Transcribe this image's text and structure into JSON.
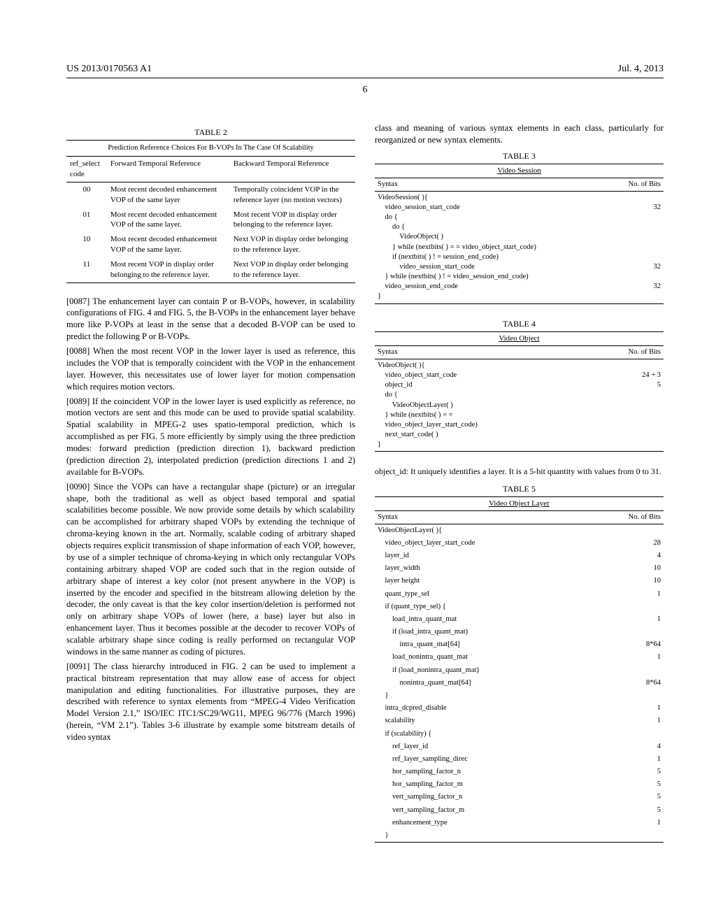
{
  "header": {
    "pub_number": "US 2013/0170563 A1",
    "pub_date": "Jul. 4, 2013",
    "page": "6"
  },
  "table2": {
    "label": "TABLE 2",
    "caption": "Prediction Reference Choices For B-VOPs In The Case Of Scalability",
    "head": [
      "ref_select code",
      "Forward Temporal Reference",
      "Backward Temporal Reference"
    ],
    "rows": [
      {
        "code": "00",
        "fwd": "Most recent decoded enhancement VOP of the same layer",
        "bwd": "Temporally coincident VOP in the reference layer (no motion vectors)"
      },
      {
        "code": "01",
        "fwd": "Most recent decoded enhancement VOP of the same layer.",
        "bwd": "Most recent VOP in display order belonging to the reference layer."
      },
      {
        "code": "10",
        "fwd": "Most recent decoded enhancement VOP of the same layer.",
        "bwd": "Next VOP in display order belonging to the reference layer."
      },
      {
        "code": "11",
        "fwd": "Most recent VOP in display order belonging to the reference layer.",
        "bwd": "Next VOP in display order belonging to the reference layer."
      }
    ]
  },
  "paras": {
    "p87_num": "[0087]",
    "p87": "    The enhancement layer can contain P or B-VOPs, however, in scalability configurations of FIG. 4 and FIG. 5, the B-VOPs in the enhancement layer behave more like P-VOPs at least in the sense that a decoded B-VOP can be used to predict the following P or B-VOPs.",
    "p88_num": "[0088]",
    "p88": "    When the most recent VOP in the lower layer is used as reference, this includes the VOP that is temporally coincident with the VOP in the enhancement layer. However, this necessitates use of lower layer for motion compensation which requires motion vectors.",
    "p89_num": "[0089]",
    "p89": "    If the coincident VOP in the lower layer is used explicitly as reference, no motion vectors are sent and this mode can be used to provide spatial scalability. Spatial scalability in MPEG-2 uses spatio-temporal prediction, which is accomplished as per FIG. 5 more efficiently by simply using the three prediction modes: forward prediction (prediction direction 1), backward prediction (prediction direction 2), interpolated prediction (prediction directions 1 and 2) available for B-VOPs.",
    "p90_num": "[0090]",
    "p90": "    Since the VOPs can have a rectangular shape (picture) or an irregular shape, both the traditional as well as object based temporal and spatial scalabilities become possible. We now provide some details by which scalability can be accomplished for arbitrary shaped VOPs by extending the technique of chroma-keying known in the art. Normally, scalable coding of arbitrary shaped objects requires explicit transmission of shape information of each VOP, however, by use of a simpler technique of chroma-keying in which only rectangular VOPs containing arbitrary shaped VOP are coded such that in the region outside of arbitrary shape of interest a key color (not present anywhere in the VOP) is inserted by the encoder and specified in the bitstream allowing deletion by the decoder, the only caveat is that the key color insertion/deletion is performed not only on arbitrary shape VOPs of lower (here, a base) layer but also in enhancement layer. Thus it becomes possible at the decoder to recover VOPs of scalable arbitrary shape since coding is really performed on rectangular VOP windows in the same manner as coding of pictures.",
    "p91_num": "[0091]",
    "p91": "    The class hierarchy introduced in FIG. 2 can be used to implement a practical bitstream representation that may allow ease of access for object manipulation and editing functionalities. For illustrative purposes, they are described with reference to syntax elements from “MPEG-4 Video Verification Model Version 2.1,” ISO/IEC ITC1/SC29/WG11, MPEG 96/776 (March 1996) (herein, “VM 2.1”). Tables 3-6 illustrate by example some bitstream details of video syntax"
  },
  "right_intro": "class and meaning of various syntax elements in each class, particularly for reorganized or new syntax elements.",
  "table3": {
    "label": "TABLE 3",
    "caption": "Video Session",
    "head1": "Syntax",
    "head2": "No. of Bits",
    "syntax": "VideoSession( ){\n    video_session_start_code\n    do {\n        do {\n            VideoObject( )\n        } while (nextbits( ) = = video_object_start_code)\n        if (nextbits( ) ! = session_end_code)\n            video_session_start_code\n    } while (nextbits( ) ! = video_session_end_code)\n    video_session_end_code\n}",
    "bits": [
      "",
      "32",
      "",
      "",
      "",
      "",
      "",
      "32",
      "",
      "32",
      ""
    ]
  },
  "table4": {
    "label": "TABLE 4",
    "caption": "Video Object",
    "head1": "Syntax",
    "head2": "No. of Bits",
    "syntax": "VideoObject( ){\n    video_object_start_code\n    object_id\n    do {\n        VideoObjectLayer( )\n    } while (nextbits( ) = =\n    video_object_layer_start_code)\n    next_start_code( )\n}",
    "bits": [
      "",
      "24 + 3",
      "5",
      "",
      "",
      "",
      "",
      "",
      ""
    ]
  },
  "note_object_id": "object_id: It uniquely identifies a layer. It is a 5-bit quantity with values from 0 to 31.",
  "table5": {
    "label": "TABLE 5",
    "caption": "Video Object Layer",
    "head1": "Syntax",
    "head2": "No. of Bits",
    "rows": [
      {
        "s": "VideoObjectLayer( ){",
        "b": ""
      },
      {
        "s": "    video_object_layer_start_code",
        "b": "28"
      },
      {
        "s": "    layer_id",
        "b": "4"
      },
      {
        "s": "    layer_width",
        "b": "10"
      },
      {
        "s": "    layer height",
        "b": "10"
      },
      {
        "s": "    quant_type_sel",
        "b": "1"
      },
      {
        "s": "    if (quant_type_sel) {",
        "b": ""
      },
      {
        "s": "        load_intra_quant_mat",
        "b": "1"
      },
      {
        "s": "        if (load_intra_quant_mat)",
        "b": ""
      },
      {
        "s": "            intra_quant_mat[64]",
        "b": "8*64"
      },
      {
        "s": "        load_nonintra_quant_mat",
        "b": "1"
      },
      {
        "s": "        if (load_nonintra_quant_mat)",
        "b": ""
      },
      {
        "s": "            nonintra_quant_mat[64]",
        "b": "8*64"
      },
      {
        "s": "    }",
        "b": ""
      },
      {
        "s": "    intra_dcpred_disable",
        "b": "1"
      },
      {
        "s": "    scalability",
        "b": "1"
      },
      {
        "s": "    if (scalability) {",
        "b": ""
      },
      {
        "s": "        ref_layer_id",
        "b": "4"
      },
      {
        "s": "        ref_layer_sampling_direc",
        "b": "1"
      },
      {
        "s": "        hor_sampling_factor_n",
        "b": "5"
      },
      {
        "s": "        hor_sampling_factor_m",
        "b": "5"
      },
      {
        "s": "        vert_sampling_factor_n",
        "b": "5"
      },
      {
        "s": "        vert_sampling_factor_m",
        "b": "5"
      },
      {
        "s": "        enhancement_type",
        "b": "1"
      },
      {
        "s": "    }",
        "b": ""
      }
    ]
  }
}
